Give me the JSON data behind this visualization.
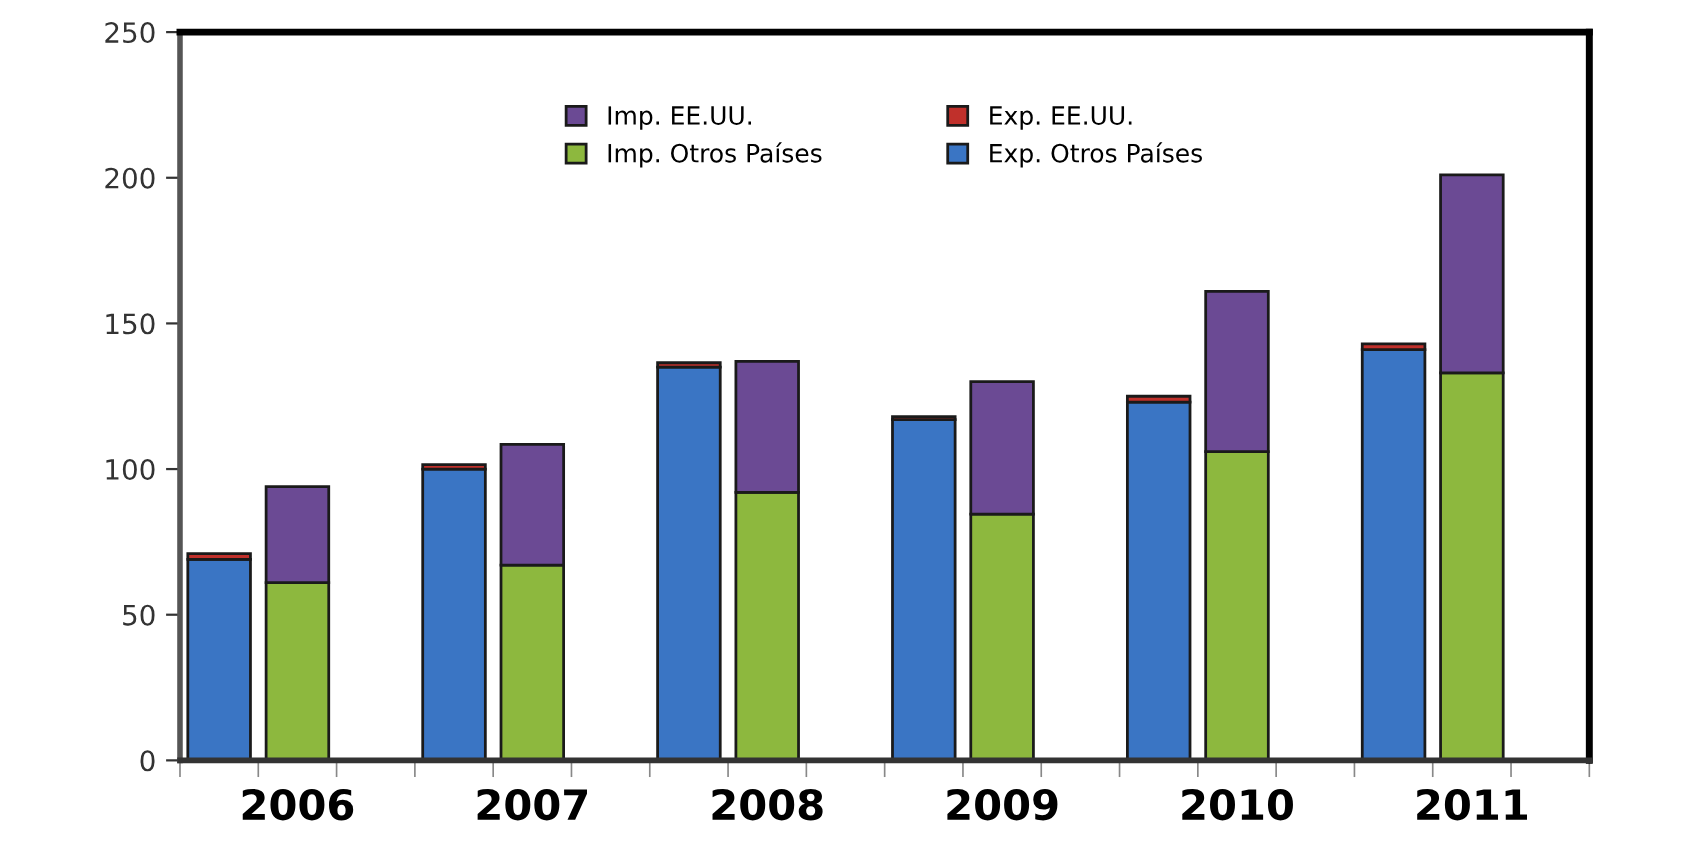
{
  "chart_data": {
    "type": "bar",
    "stacked": true,
    "categories": [
      null,
      "2006",
      null,
      null,
      "2007",
      null,
      null,
      "2008",
      null,
      null,
      "2009",
      null,
      null,
      "2010",
      null,
      null,
      "2011",
      null
    ],
    "series": [
      {
        "name": "Exp. Otros Países",
        "color": "#3a75c4",
        "values": [
          69,
          null,
          null,
          100,
          null,
          null,
          135,
          null,
          null,
          117,
          null,
          null,
          123,
          null,
          null,
          141,
          null,
          null
        ]
      },
      {
        "name": "Exp. EE.UU.",
        "color": "#c0302b",
        "values": [
          2,
          null,
          null,
          1.5,
          null,
          null,
          1.5,
          null,
          null,
          1,
          null,
          null,
          2,
          null,
          null,
          2,
          null,
          null
        ]
      },
      {
        "name": "Imp. Otros Países",
        "color": "#8db83e",
        "values": [
          null,
          61,
          null,
          null,
          67,
          null,
          null,
          92,
          null,
          null,
          84.5,
          null,
          null,
          106,
          null,
          null,
          133,
          null
        ]
      },
      {
        "name": "Imp. EE.UU.",
        "color": "#6b4a94",
        "values": [
          null,
          33,
          null,
          null,
          41.5,
          null,
          null,
          45,
          null,
          null,
          45.5,
          null,
          null,
          55,
          null,
          null,
          68,
          null
        ]
      }
    ],
    "ylim": [
      0,
      250
    ],
    "yticks": [
      0,
      50,
      100,
      150,
      200,
      250
    ],
    "grid": false,
    "legend": "top"
  }
}
